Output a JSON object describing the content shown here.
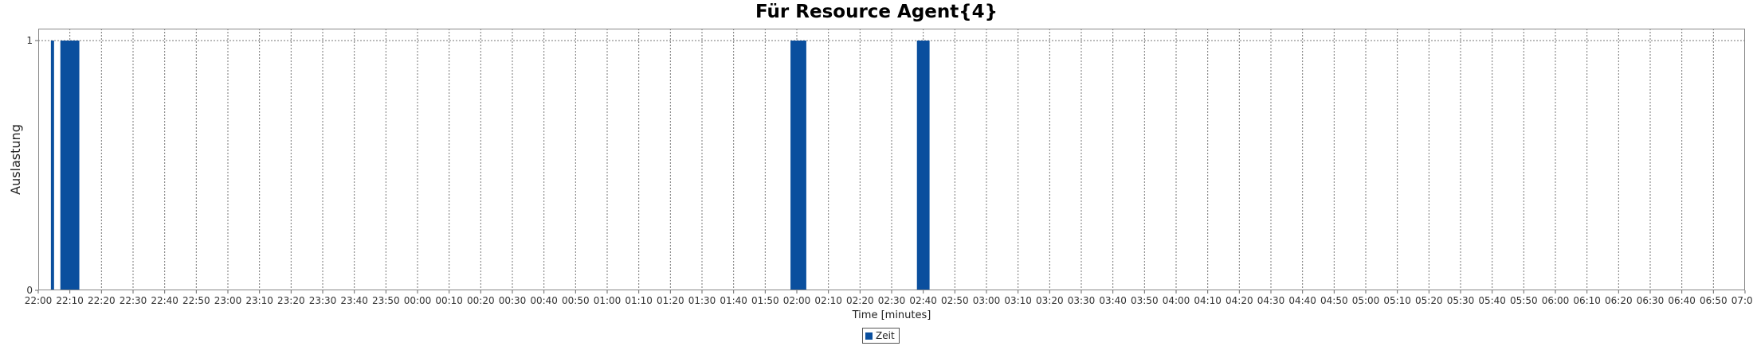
{
  "chart_data": {
    "type": "bar",
    "title": "Für Resource Agent{4}",
    "xlabel": "Time [minutes]",
    "ylabel": "Auslastung",
    "ylim": [
      0,
      1
    ],
    "yticks": [
      "0",
      "1"
    ],
    "xlim": [
      "22:00",
      "07:00"
    ],
    "x_tick_labels": [
      "22:00",
      "22:10",
      "22:20",
      "22:30",
      "22:40",
      "22:50",
      "23:00",
      "23:10",
      "23:20",
      "23:30",
      "23:40",
      "23:50",
      "00:00",
      "00:10",
      "00:20",
      "00:30",
      "00:40",
      "00:50",
      "01:00",
      "01:10",
      "01:20",
      "01:30",
      "01:40",
      "01:50",
      "02:00",
      "02:10",
      "02:20",
      "02:30",
      "02:40",
      "02:50",
      "03:00",
      "03:10",
      "03:20",
      "03:30",
      "03:40",
      "03:50",
      "04:00",
      "04:10",
      "04:20",
      "04:30",
      "04:40",
      "04:50",
      "05:00",
      "05:10",
      "05:20",
      "05:30",
      "05:40",
      "05:50",
      "06:00",
      "06:10",
      "06:20",
      "06:30",
      "06:40",
      "06:50",
      "07:00"
    ],
    "grid": true,
    "legend_position": "bottom",
    "series": [
      {
        "name": "Zeit",
        "color": "#0a4f9e",
        "bars": [
          {
            "start": "22:04",
            "end": "22:05",
            "value": 1
          },
          {
            "start": "22:07",
            "end": "22:13",
            "value": 1
          },
          {
            "start": "01:58",
            "end": "02:03",
            "value": 1
          },
          {
            "start": "02:38",
            "end": "02:42",
            "value": 1
          }
        ]
      }
    ]
  }
}
